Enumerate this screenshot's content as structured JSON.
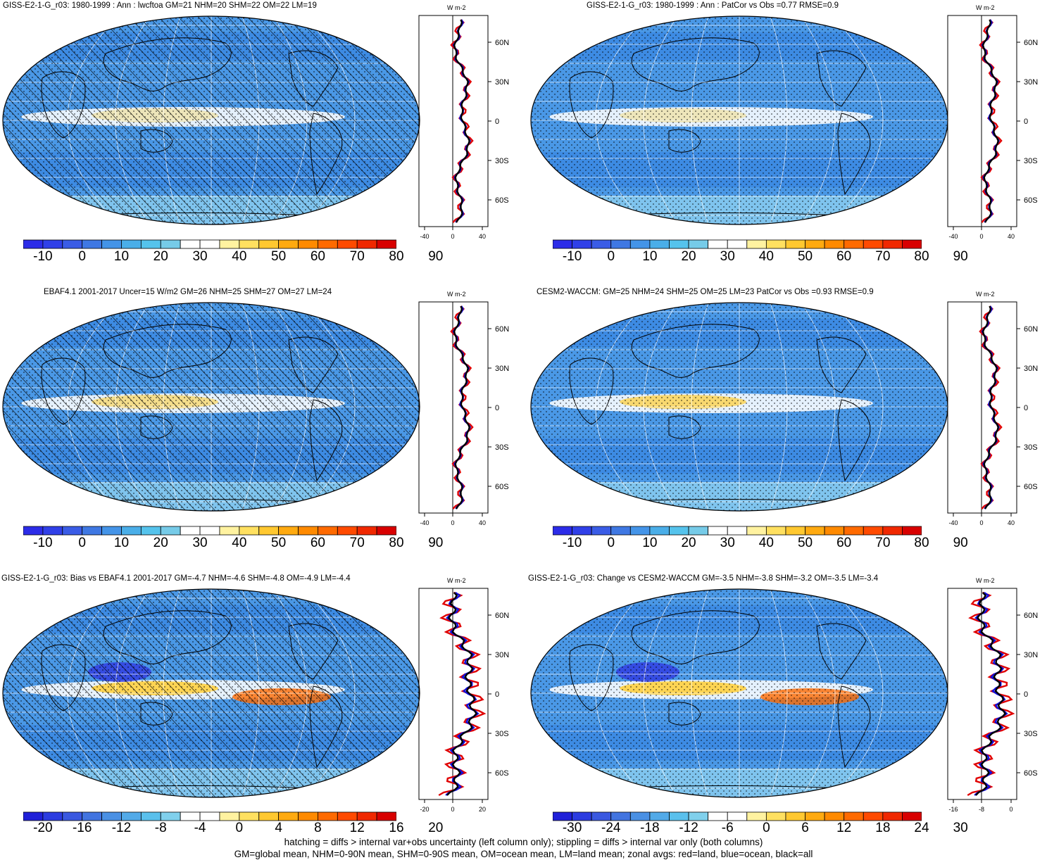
{
  "panels": [
    {
      "title": "GISS-E2-1-G_r03: 1980-1999 : Ann : lwcftoa GM=21 NHM=20 SHM=22 OM=22 LM=19",
      "colorbar": {
        "labels": [
          "-10",
          "0",
          "10",
          "20",
          "30",
          "40",
          "50",
          "60",
          "70",
          "80",
          "90"
        ],
        "colors": [
          "#2c2ce8",
          "#3040e8",
          "#3a5ce6",
          "#3f78e3",
          "#4494e8",
          "#4aaee8",
          "#55c3ec",
          "#76cbe8",
          "#ffffff",
          "#ffffff",
          "#fff2a0",
          "#ffe060",
          "#ffc830",
          "#ffaa10",
          "#ff8a00",
          "#ff6a00",
          "#ff4a00",
          "#f02800",
          "#d80000"
        ]
      },
      "zonal": {
        "x_ticks": [
          "-40",
          "0",
          "40"
        ],
        "lat_ticks": [
          "60N",
          "30N",
          "0",
          "30S",
          "60S"
        ],
        "unit": "W m-2"
      },
      "map": {
        "hatching": true,
        "stippling": true,
        "warm_band": 0.35
      }
    },
    {
      "title": "GISS-E2-1-G_r03: 1980-1999 : Ann : PatCor vs Obs =0.77 RMSE=0.9",
      "colorbar": {
        "labels": [
          "-10",
          "0",
          "10",
          "20",
          "30",
          "40",
          "50",
          "60",
          "70",
          "80",
          "90"
        ],
        "colors": [
          "#2c2ce8",
          "#3040e8",
          "#3a5ce6",
          "#3f78e3",
          "#4494e8",
          "#4aaee8",
          "#55c3ec",
          "#76cbe8",
          "#ffffff",
          "#ffffff",
          "#fff2a0",
          "#ffe060",
          "#ffc830",
          "#ffaa10",
          "#ff8a00",
          "#ff6a00",
          "#ff4a00",
          "#f02800",
          "#d80000"
        ]
      },
      "zonal": {
        "x_ticks": [
          "-40",
          "0",
          "40"
        ],
        "lat_ticks": [
          "60N",
          "30N",
          "0",
          "30S",
          "60S"
        ],
        "unit": "W m-2"
      },
      "map": {
        "hatching": false,
        "stippling": true,
        "warm_band": 0.35
      }
    },
    {
      "title": "EBAF4.1 2001-2017 Uncer=15 W/m2 GM=26 NHM=25 SHM=27 OM=27 LM=24",
      "colorbar": {
        "labels": [
          "-10",
          "0",
          "10",
          "20",
          "30",
          "40",
          "50",
          "60",
          "70",
          "80",
          "90"
        ],
        "colors": [
          "#2c2ce8",
          "#3040e8",
          "#3a5ce6",
          "#3f78e3",
          "#4494e8",
          "#4aaee8",
          "#55c3ec",
          "#76cbe8",
          "#ffffff",
          "#ffffff",
          "#fff2a0",
          "#ffe060",
          "#ffc830",
          "#ffaa10",
          "#ff8a00",
          "#ff6a00",
          "#ff4a00",
          "#f02800",
          "#d80000"
        ]
      },
      "zonal": {
        "x_ticks": [
          "-40",
          "0",
          "40"
        ],
        "lat_ticks": [
          "60N",
          "30N",
          "0",
          "30S",
          "60S"
        ],
        "unit": "W m-2"
      },
      "map": {
        "hatching": true,
        "stippling": true,
        "warm_band": 0.6
      }
    },
    {
      "title": "CESM2-WACCM: GM=25 NHM=24 SHM=25 OM=25 LM=23 PatCor vs Obs =0.93 RMSE=0.9",
      "colorbar": {
        "labels": [
          "-10",
          "0",
          "10",
          "20",
          "30",
          "40",
          "50",
          "60",
          "70",
          "80",
          "90"
        ],
        "colors": [
          "#2c2ce8",
          "#3040e8",
          "#3a5ce6",
          "#3f78e3",
          "#4494e8",
          "#4aaee8",
          "#55c3ec",
          "#76cbe8",
          "#ffffff",
          "#ffffff",
          "#fff2a0",
          "#ffe060",
          "#ffc830",
          "#ffaa10",
          "#ff8a00",
          "#ff6a00",
          "#ff4a00",
          "#f02800",
          "#d80000"
        ]
      },
      "zonal": {
        "x_ticks": [
          "-40",
          "0",
          "40"
        ],
        "lat_ticks": [
          "60N",
          "30N",
          "0",
          "30S",
          "60S"
        ],
        "unit": "W m-2"
      },
      "map": {
        "hatching": false,
        "stippling": true,
        "warm_band": 0.75
      }
    },
    {
      "title": "GISS-E2-1-G_r03: Bias vs EBAF4.1 2001-2017 GM=-4.7 NHM=-4.6 SHM=-4.8 OM=-4.9 LM=-4.4",
      "colorbar": {
        "labels": [
          "-20",
          "-16",
          "-12",
          "-8",
          "-4",
          "0",
          "4",
          "8",
          "12",
          "16",
          "20"
        ],
        "colors": [
          "#2020d8",
          "#2c3ce0",
          "#3a58e0",
          "#4274e0",
          "#4a90e4",
          "#52aae8",
          "#5ac0ec",
          "#80d0ec",
          "#ffffff",
          "#ffffff",
          "#fff2a0",
          "#ffe060",
          "#ffc830",
          "#ffaa10",
          "#ff8a00",
          "#ff6a00",
          "#ff4a00",
          "#f02800",
          "#d80000"
        ]
      },
      "zonal": {
        "x_ticks": [
          "-20",
          "0",
          "20"
        ],
        "lat_ticks": [
          "60N",
          "30N",
          "0",
          "30S",
          "60S"
        ],
        "unit": "W m-2"
      },
      "map": {
        "hatching": true,
        "stippling": true,
        "warm_band": 0.9
      }
    },
    {
      "title": "GISS-E2-1-G_r03: Change vs CESM2-WACCM GM=-3.5 NHM=-3.8 SHM=-3.2 OM=-3.5 LM=-3.4",
      "colorbar": {
        "labels": [
          "-30",
          "-24",
          "-18",
          "-12",
          "-6",
          "0",
          "6",
          "12",
          "18",
          "24",
          "30"
        ],
        "colors": [
          "#2020d8",
          "#2c3ce0",
          "#3a58e0",
          "#4274e0",
          "#4a90e4",
          "#52aae8",
          "#5ac0ec",
          "#80d0ec",
          "#ffffff",
          "#ffffff",
          "#fff2a0",
          "#ffe060",
          "#ffc830",
          "#ffaa10",
          "#ff8a00",
          "#ff6a00",
          "#ff4a00",
          "#f02800",
          "#d80000"
        ]
      },
      "zonal": {
        "x_ticks": [
          "-16",
          "-8",
          "0"
        ],
        "lat_ticks": [
          "60N",
          "30N",
          "0",
          "30S",
          "60S"
        ],
        "unit": "W m-2"
      },
      "map": {
        "hatching": false,
        "stippling": true,
        "warm_band": 0.9
      }
    }
  ],
  "footer": {
    "line1": "hatching = diffs > internal var+obs uncertainty (left column only); stippling = diffs > internal var only (both columns)",
    "line2": "GM=global mean, NHM=0-90N mean, SHM=0-90S mean, OM=ocean mean, LM=land mean; zonal avgs: red=land, blue=ocean, black=all"
  }
}
